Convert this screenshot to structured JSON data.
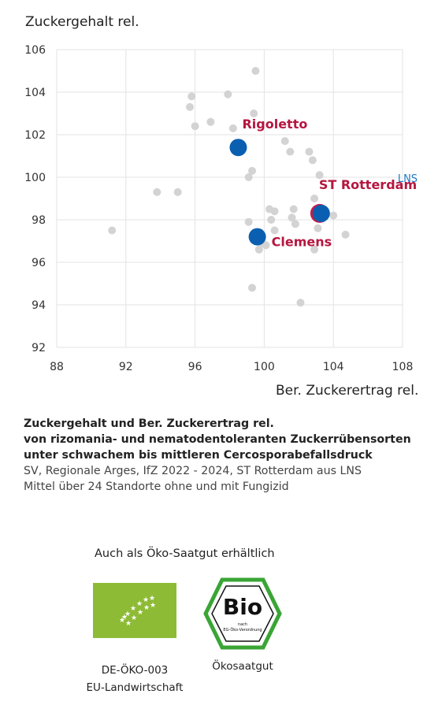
{
  "chart_data": {
    "type": "scatter",
    "ylabel": "Zuckergehalt rel.",
    "xlabel": "Ber. Zuckerertrag rel.",
    "xlim": [
      88,
      108
    ],
    "ylim": [
      92,
      106
    ],
    "x_ticks": [
      "88",
      "92",
      "96",
      "100",
      "104",
      "108"
    ],
    "y_ticks": [
      "92",
      "94",
      "96",
      "98",
      "100",
      "102",
      "104",
      "106"
    ],
    "grid": true,
    "background_points": [
      {
        "x": 99.5,
        "y": 105.0
      },
      {
        "x": 95.8,
        "y": 103.8
      },
      {
        "x": 97.9,
        "y": 103.9
      },
      {
        "x": 95.7,
        "y": 103.3
      },
      {
        "x": 99.4,
        "y": 103.0
      },
      {
        "x": 96.9,
        "y": 102.6
      },
      {
        "x": 96.0,
        "y": 102.4
      },
      {
        "x": 98.2,
        "y": 102.3
      },
      {
        "x": 101.2,
        "y": 101.7
      },
      {
        "x": 102.6,
        "y": 101.2
      },
      {
        "x": 101.5,
        "y": 101.2
      },
      {
        "x": 102.8,
        "y": 100.8
      },
      {
        "x": 99.3,
        "y": 100.3
      },
      {
        "x": 103.2,
        "y": 100.1
      },
      {
        "x": 99.1,
        "y": 100.0
      },
      {
        "x": 93.8,
        "y": 99.3
      },
      {
        "x": 95.0,
        "y": 99.3
      },
      {
        "x": 102.9,
        "y": 99.0
      },
      {
        "x": 100.3,
        "y": 98.5
      },
      {
        "x": 100.6,
        "y": 98.4
      },
      {
        "x": 101.7,
        "y": 98.5
      },
      {
        "x": 101.6,
        "y": 98.1
      },
      {
        "x": 100.4,
        "y": 98.0
      },
      {
        "x": 104.0,
        "y": 98.2
      },
      {
        "x": 99.1,
        "y": 97.9
      },
      {
        "x": 101.8,
        "y": 97.8
      },
      {
        "x": 103.1,
        "y": 97.6
      },
      {
        "x": 91.2,
        "y": 97.5
      },
      {
        "x": 100.6,
        "y": 97.5
      },
      {
        "x": 99.6,
        "y": 97.4
      },
      {
        "x": 104.7,
        "y": 97.3
      },
      {
        "x": 99.9,
        "y": 96.9
      },
      {
        "x": 100.1,
        "y": 96.8
      },
      {
        "x": 99.7,
        "y": 96.6
      },
      {
        "x": 102.9,
        "y": 96.6
      },
      {
        "x": 99.3,
        "y": 94.8
      },
      {
        "x": 102.1,
        "y": 94.1
      }
    ],
    "highlight_points": [
      {
        "label": "Rigoletto",
        "x": 98.5,
        "y": 101.4
      },
      {
        "label": "ST Rotterdam",
        "x": 103.3,
        "y": 98.3
      },
      {
        "label": "Clemens",
        "x": 99.6,
        "y": 97.2
      }
    ],
    "extra_label": "LNS",
    "colors": {
      "background": "#d3d3d3",
      "highlight": "#0a5fb1",
      "label": "#b5163f",
      "rotterdam_ring": "#c41e49",
      "lns": "#1e78c8"
    }
  },
  "caption": {
    "line1": "Zuckergehalt und Ber. Zuckerertrag rel.",
    "line2": "von rizomania- und nematodentoleranten Zuckerrübensorten",
    "line3": "unter schwachem bis mittleren Cercosporabefallsdruck",
    "line4": "SV, Regionale Arges, IfZ 2022 - 2024,  ST Rotterdam aus LNS",
    "line5": "Mittel über 24 Standorte ohne und mit Fungizid"
  },
  "eco": {
    "title": "Auch als Öko-Saatgut erhältlich",
    "eu_code": "DE-ÖKO-003",
    "eu_text": "EU-Landwirtschaft",
    "bio_caption": "Ökosaatgut",
    "bio_word": "Bio",
    "bio_small1": "nach",
    "bio_small2": "EG-Öko-Verordnung"
  }
}
